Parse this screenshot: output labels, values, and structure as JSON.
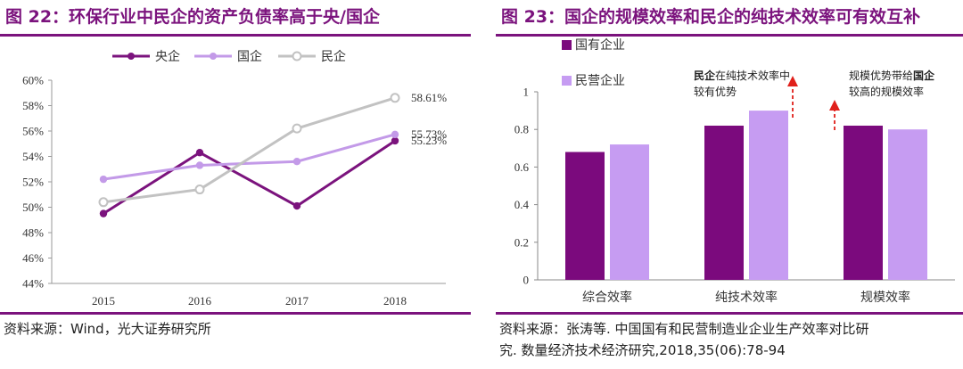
{
  "colors": {
    "brand": "#7b137d",
    "central": "#7b137d",
    "national": "#c39ae8",
    "private": "#c2c2c2",
    "state_bar": "#7b0a7d",
    "private_bar": "#c69cf2",
    "arrow": "#e0201b"
  },
  "left_figure": {
    "title": "图 22：环保行业中民企的资产负债率高于央/国企",
    "source": "资料来源：Wind，光大证券研究所",
    "chart_data": {
      "type": "line",
      "x": [
        "2015",
        "2016",
        "2017",
        "2018"
      ],
      "series": [
        {
          "name": "央企",
          "values": [
            49.5,
            54.3,
            50.1,
            55.23
          ]
        },
        {
          "name": "国企",
          "values": [
            52.2,
            53.3,
            53.6,
            55.73
          ]
        },
        {
          "name": "民企",
          "values": [
            50.4,
            51.4,
            56.2,
            58.61
          ]
        }
      ],
      "end_labels": [
        "55.23%",
        "55.73%",
        "58.61%"
      ],
      "yticks": [
        "44%",
        "46%",
        "48%",
        "50%",
        "52%",
        "54%",
        "56%",
        "58%",
        "60%"
      ],
      "ylim": [
        44,
        60
      ]
    }
  },
  "right_figure": {
    "title": "图 23：国企的规模效率和民企的纯技术效率可有效互补",
    "source_lines": [
      "资料来源：张涛等. 中国国有和民营制造业企业生产效率对比研",
      "究. 数量经济技术经济研究,2018,35(06):78-94"
    ],
    "annotations": {
      "private_prefix": "民企",
      "private_suffix": "在纯技术效率中",
      "private_line2": "较有优势",
      "state_prefix": "规模优势带给",
      "state_bold": "国企",
      "state_line2": "较高的规模效率"
    },
    "chart_data": {
      "type": "bar",
      "categories": [
        "综合效率",
        "纯技术效率",
        "规模效率"
      ],
      "series": [
        {
          "name": "国有企业",
          "values": [
            0.68,
            0.82,
            0.82
          ]
        },
        {
          "name": "民营企业",
          "values": [
            0.72,
            0.9,
            0.8
          ]
        }
      ],
      "yticks": [
        "0",
        "0.2",
        "0.4",
        "0.6",
        "0.8",
        "1"
      ],
      "ylim": [
        0,
        1
      ]
    }
  }
}
